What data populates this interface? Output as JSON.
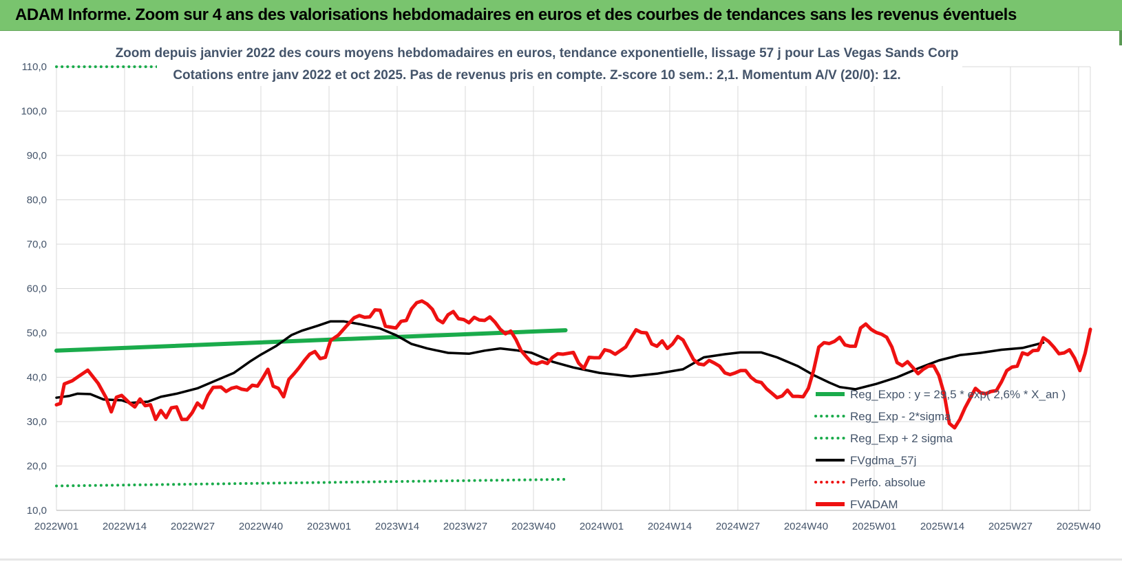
{
  "header": {
    "title": "ADAM Informe. Zoom sur 4 ans des valorisations hebdomadaires en euros et des courbes de tendances sans les revenus éventuels"
  },
  "colors": {
    "header_band": "#79c46e",
    "reg_expo": "#1aab4b",
    "fvgdma": "#000000",
    "fvadam": "#ee1111",
    "perfo": "#ee1111",
    "title_text": "#44546a",
    "grid": "#d9d9d9"
  },
  "chart_data": {
    "type": "line",
    "title_line1": "Zoom depuis janvier 2022 des cours moyens hebdomadaires en euros, tendance exponentielle, lissage 57 j pour Las Vegas Sands Corp",
    "title_line2": "Cotations entre janv 2022 et oct 2025. Pas de revenus pris en compte. Z-score 10 sem.: 2,1. Momentum A/V (20/0): 12.",
    "ylim": [
      10,
      110
    ],
    "y_ticks": [
      "10,0",
      "20,0",
      "30,0",
      "40,0",
      "50,0",
      "60,0",
      "70,0",
      "80,0",
      "90,0",
      "100,0",
      "110,0"
    ],
    "x_ticks": [
      "2022W01",
      "2022W14",
      "2022W27",
      "2022W40",
      "2023W01",
      "2023W14",
      "2023W27",
      "2023W40",
      "2024W01",
      "2024W14",
      "2024W27",
      "2024W40",
      "2025W01",
      "2025W14",
      "2025W27",
      "2025W40"
    ],
    "grid": true,
    "legend_position": "right",
    "series": [
      {
        "name": "Reg_Expo : y = 29,5 * exp( 2,6% * X_an )",
        "style": "solid",
        "color": "#1aab4b",
        "points": [
          [
            0,
            46.0
          ],
          [
            195,
            50.6
          ]
        ]
      },
      {
        "name": "Reg_Exp - 2*sigma",
        "style": "dotted",
        "color": "#1aab4b",
        "points": [
          [
            0,
            15.5
          ],
          [
            195,
            17.0
          ]
        ]
      },
      {
        "name": "Reg_Exp + 2 sigma",
        "style": "dotted",
        "color": "#1aab4b",
        "points": [
          [
            0,
            110.0
          ],
          [
            195,
            110.0
          ]
        ]
      },
      {
        "name": "FVgdma_57j",
        "style": "solid",
        "color": "#000000",
        "points": [
          [
            0,
            35.4
          ],
          [
            5,
            35.8
          ],
          [
            8,
            36.3
          ],
          [
            13,
            36.2
          ],
          [
            18,
            35.0
          ],
          [
            25,
            34.8
          ],
          [
            28,
            34.2
          ],
          [
            35,
            34.5
          ],
          [
            40,
            35.6
          ],
          [
            46,
            36.3
          ],
          [
            54,
            37.5
          ],
          [
            62,
            39.5
          ],
          [
            68,
            41.0
          ],
          [
            74,
            43.5
          ],
          [
            78,
            45.0
          ],
          [
            84,
            47.0
          ],
          [
            90,
            49.5
          ],
          [
            94,
            50.5
          ],
          [
            100,
            51.6
          ],
          [
            105,
            52.6
          ],
          [
            110,
            52.6
          ],
          [
            116,
            52.0
          ],
          [
            124,
            51.0
          ],
          [
            130,
            49.5
          ],
          [
            136,
            47.5
          ],
          [
            142,
            46.5
          ],
          [
            150,
            45.5
          ],
          [
            158,
            45.3
          ],
          [
            164,
            46.0
          ],
          [
            170,
            46.5
          ],
          [
            176,
            46.1
          ],
          [
            182,
            45.5
          ],
          [
            190,
            43.5
          ],
          [
            198,
            42.2
          ],
          [
            208,
            41.0
          ],
          [
            220,
            40.2
          ],
          [
            230,
            40.8
          ],
          [
            240,
            41.8
          ],
          [
            248,
            44.5
          ],
          [
            256,
            45.2
          ],
          [
            262,
            45.6
          ],
          [
            270,
            45.6
          ],
          [
            276,
            44.5
          ],
          [
            284,
            42.5
          ],
          [
            290,
            40.5
          ],
          [
            296,
            38.8
          ],
          [
            300,
            37.8
          ],
          [
            306,
            37.3
          ],
          [
            314,
            38.5
          ],
          [
            322,
            40.0
          ],
          [
            330,
            42.0
          ],
          [
            338,
            43.8
          ],
          [
            346,
            45.0
          ],
          [
            354,
            45.5
          ],
          [
            362,
            46.2
          ],
          [
            370,
            46.6
          ],
          [
            378,
            47.8
          ]
        ]
      },
      {
        "name": "Perfo. absolue",
        "style": "dotted",
        "color": "#ee1111",
        "points": []
      },
      {
        "name": "FVADAM",
        "style": "solid",
        "color": "#ee1111",
        "points": [
          [
            0,
            33.8
          ],
          [
            1.5,
            34.1
          ],
          [
            3,
            38.5
          ],
          [
            6,
            39.2
          ],
          [
            8,
            40.0
          ],
          [
            12,
            41.6
          ],
          [
            16,
            38.6
          ],
          [
            19,
            35.4
          ],
          [
            21,
            32.2
          ],
          [
            23,
            35.5
          ],
          [
            25,
            35.9
          ],
          [
            28,
            34.2
          ],
          [
            30,
            33.3
          ],
          [
            32,
            35.1
          ],
          [
            34,
            33.6
          ],
          [
            36,
            33.8
          ],
          [
            38,
            30.5
          ],
          [
            40,
            32.5
          ],
          [
            42,
            30.9
          ],
          [
            44,
            33.1
          ],
          [
            46,
            33.3
          ],
          [
            48,
            30.5
          ],
          [
            50,
            30.5
          ],
          [
            52,
            32.0
          ],
          [
            54,
            34.2
          ],
          [
            56,
            33.1
          ],
          [
            58,
            35.9
          ],
          [
            60,
            37.7
          ],
          [
            63,
            37.8
          ],
          [
            65,
            36.8
          ],
          [
            67,
            37.5
          ],
          [
            69,
            37.8
          ],
          [
            71,
            37.3
          ],
          [
            73,
            37.1
          ],
          [
            75,
            38.2
          ],
          [
            77,
            38.0
          ],
          [
            79,
            39.8
          ],
          [
            81,
            41.8
          ],
          [
            83,
            38.0
          ],
          [
            85,
            37.5
          ],
          [
            87,
            35.6
          ],
          [
            89,
            39.5
          ],
          [
            91,
            40.8
          ],
          [
            93,
            42.2
          ],
          [
            95,
            43.8
          ],
          [
            97,
            45.2
          ],
          [
            99,
            45.8
          ],
          [
            101,
            44.2
          ],
          [
            103,
            44.5
          ],
          [
            105,
            48.3
          ],
          [
            108,
            49.5
          ],
          [
            111,
            51.5
          ],
          [
            114,
            53.4
          ],
          [
            116,
            53.9
          ],
          [
            118,
            53.5
          ],
          [
            120,
            53.6
          ],
          [
            122,
            55.2
          ],
          [
            124,
            55.1
          ],
          [
            126,
            51.5
          ],
          [
            128,
            51.3
          ],
          [
            130,
            51.1
          ],
          [
            132,
            52.6
          ],
          [
            134,
            52.8
          ],
          [
            136,
            55.4
          ],
          [
            138,
            56.8
          ],
          [
            140,
            57.2
          ],
          [
            142,
            56.5
          ],
          [
            144,
            55.3
          ],
          [
            146,
            53.0
          ],
          [
            148,
            52.3
          ],
          [
            150,
            54.1
          ],
          [
            152,
            54.8
          ],
          [
            154,
            53.2
          ],
          [
            156,
            53.0
          ],
          [
            158,
            52.3
          ],
          [
            160,
            53.5
          ],
          [
            162,
            52.9
          ],
          [
            164,
            52.8
          ],
          [
            166,
            53.6
          ],
          [
            168,
            52.4
          ],
          [
            170,
            50.8
          ],
          [
            172,
            49.8
          ],
          [
            174,
            50.4
          ],
          [
            176,
            48.5
          ],
          [
            178,
            46.0
          ],
          [
            180,
            44.6
          ],
          [
            182,
            43.3
          ],
          [
            184,
            43.0
          ],
          [
            186,
            43.5
          ],
          [
            188,
            43.1
          ],
          [
            190,
            44.5
          ],
          [
            192,
            45.3
          ],
          [
            194,
            45.2
          ],
          [
            196,
            45.4
          ],
          [
            198,
            45.6
          ],
          [
            200,
            43.2
          ],
          [
            202,
            42.0
          ],
          [
            204,
            44.5
          ],
          [
            206,
            44.4
          ],
          [
            208,
            44.4
          ],
          [
            210,
            46.2
          ],
          [
            212,
            45.9
          ],
          [
            214,
            45.2
          ],
          [
            216,
            46.0
          ],
          [
            218,
            46.8
          ],
          [
            220,
            48.8
          ],
          [
            222,
            50.7
          ],
          [
            224,
            50.1
          ],
          [
            226,
            50.0
          ],
          [
            228,
            47.5
          ],
          [
            230,
            47.0
          ],
          [
            232,
            48.2
          ],
          [
            234,
            46.5
          ],
          [
            236,
            47.5
          ],
          [
            238,
            49.2
          ],
          [
            240,
            48.4
          ],
          [
            242,
            46.2
          ],
          [
            244,
            44.0
          ],
          [
            246,
            43.0
          ],
          [
            248,
            42.8
          ],
          [
            250,
            43.8
          ],
          [
            252,
            43.2
          ],
          [
            254,
            42.5
          ],
          [
            256,
            41.0
          ],
          [
            258,
            40.6
          ],
          [
            260,
            41.0
          ],
          [
            262,
            41.5
          ],
          [
            264,
            41.5
          ],
          [
            266,
            40.0
          ],
          [
            268,
            39.1
          ],
          [
            270,
            38.8
          ],
          [
            272,
            37.4
          ],
          [
            274,
            36.4
          ],
          [
            276,
            35.4
          ],
          [
            278,
            35.8
          ],
          [
            280,
            37.1
          ],
          [
            282,
            35.7
          ],
          [
            284,
            35.7
          ],
          [
            286,
            35.6
          ],
          [
            288,
            37.5
          ],
          [
            290,
            41.5
          ],
          [
            292,
            46.8
          ],
          [
            294,
            47.8
          ],
          [
            296,
            47.6
          ],
          [
            298,
            48.1
          ],
          [
            300,
            49.0
          ],
          [
            302,
            47.3
          ],
          [
            304,
            47.0
          ],
          [
            306,
            47.0
          ],
          [
            308,
            51.1
          ],
          [
            310,
            52.0
          ],
          [
            312,
            50.8
          ],
          [
            314,
            50.1
          ],
          [
            316,
            49.7
          ],
          [
            318,
            49.0
          ],
          [
            320,
            46.8
          ],
          [
            322,
            43.3
          ],
          [
            324,
            42.6
          ],
          [
            326,
            43.5
          ],
          [
            328,
            42.2
          ],
          [
            330,
            40.8
          ],
          [
            332,
            41.8
          ],
          [
            334,
            42.5
          ],
          [
            336,
            42.6
          ],
          [
            338,
            40.4
          ],
          [
            340,
            36.3
          ],
          [
            342,
            29.6
          ],
          [
            344,
            28.6
          ],
          [
            346,
            30.5
          ],
          [
            348,
            33.1
          ],
          [
            350,
            35.3
          ],
          [
            352,
            37.5
          ],
          [
            354,
            36.5
          ],
          [
            356,
            36.3
          ],
          [
            358,
            36.8
          ],
          [
            360,
            37.0
          ],
          [
            362,
            39.0
          ],
          [
            364,
            41.5
          ],
          [
            366,
            42.3
          ],
          [
            368,
            42.5
          ],
          [
            370,
            45.5
          ],
          [
            372,
            45.1
          ],
          [
            374,
            46.0
          ],
          [
            376,
            46.1
          ],
          [
            378,
            48.9
          ],
          [
            380,
            48.1
          ],
          [
            382,
            46.8
          ],
          [
            384,
            45.3
          ],
          [
            386,
            45.5
          ],
          [
            388,
            46.2
          ],
          [
            390,
            44.3
          ],
          [
            392,
            41.5
          ],
          [
            394,
            45.4
          ],
          [
            396,
            50.8
          ]
        ]
      }
    ]
  }
}
